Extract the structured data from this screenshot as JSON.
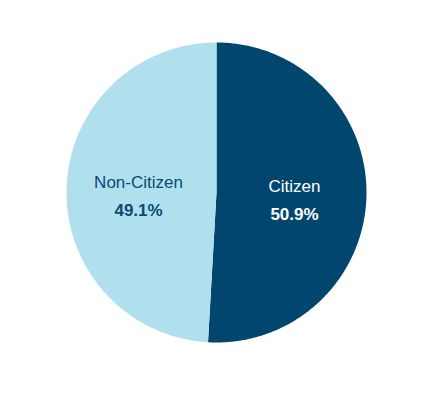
{
  "chart_data": {
    "type": "pie",
    "categories": [
      "Citizen",
      "Non-Citizen"
    ],
    "values": [
      50.9,
      49.1
    ],
    "value_labels": [
      "50.9%",
      "49.1%"
    ],
    "colors": [
      "#00466f",
      "#b0e0ed"
    ],
    "data_labels": true
  }
}
